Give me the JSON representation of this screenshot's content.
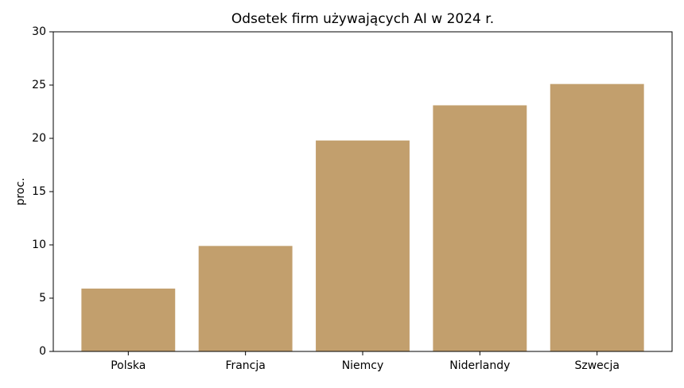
{
  "chart_data": {
    "type": "bar",
    "title": "Odsetek firm używających AI w 2024 r.",
    "y_label": "proc.",
    "categories": [
      "Polska",
      "Francja",
      "Niemcy",
      "Niderlandy",
      "Szwecja"
    ],
    "values": [
      5.9,
      9.9,
      19.8,
      23.1,
      25.1
    ],
    "color": "#c29f6d",
    "ylim": [
      0,
      30
    ],
    "yticks": [
      0,
      5,
      10,
      15,
      20,
      25,
      30
    ],
    "grid": false
  }
}
